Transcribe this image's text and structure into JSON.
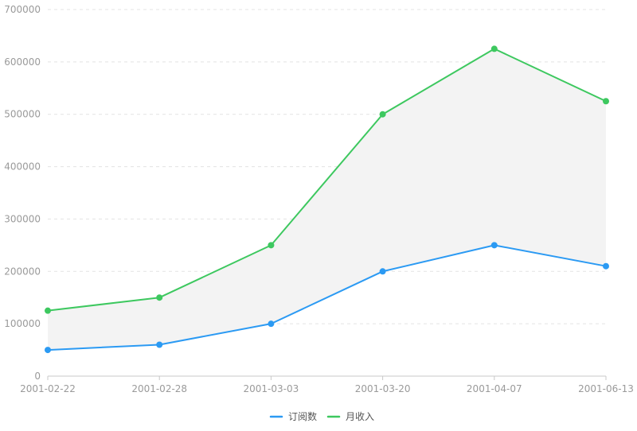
{
  "chart_data": {
    "type": "line",
    "categories": [
      "2001-02-22",
      "2001-02-28",
      "2001-03-03",
      "2001-03-20",
      "2001-04-07",
      "2001-06-13"
    ],
    "series": [
      {
        "name": "订阅数",
        "values": [
          50000,
          60000,
          100000,
          200000,
          250000,
          210000
        ],
        "color": "#2B9AF3"
      },
      {
        "name": "月收入",
        "values": [
          125000,
          150000,
          250000,
          500000,
          625000,
          525000
        ],
        "color": "#3DC85F"
      }
    ],
    "ylim": [
      0,
      700000
    ],
    "yticks": [
      0,
      100000,
      200000,
      300000,
      400000,
      500000,
      600000,
      700000
    ],
    "ytick_labels": [
      "0",
      "100000",
      "200000",
      "300000",
      "400000",
      "500000",
      "600000",
      "700000"
    ],
    "fill_between_series": true,
    "fill_color": "#f3f3f3",
    "grid": true,
    "grid_style": "dashed-horizontal",
    "legend_position": "bottom-center",
    "title": "",
    "xlabel": "",
    "ylabel": ""
  }
}
